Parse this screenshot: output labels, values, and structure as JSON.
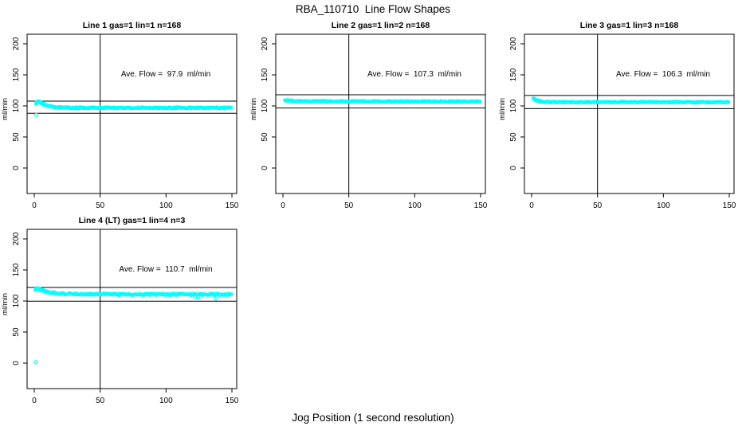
{
  "main_title": "RBA_110710  Line Flow Shapes",
  "x_axis_title": "Jog Position (1 second resolution)",
  "y_axis_label": "ml/min",
  "colors": {
    "points": "#00FFFF",
    "lines": "#000000",
    "background": "#FFFFFF",
    "text": "#000000"
  },
  "axes": {
    "x_ticks": [
      0,
      50,
      100,
      150
    ],
    "y_ticks": [
      0,
      50,
      100,
      150,
      200
    ],
    "vertical_reference_x": 50
  },
  "chart_data": [
    {
      "type": "scatter",
      "title": "Line 1 gas=1 lin=1 n=168",
      "line": 1,
      "gas": 1,
      "lin": 1,
      "n": 168,
      "ave_flow_ml_min": 97.9,
      "annotation": "Ave. Flow =  97.9  ml/min",
      "upper_reference_line": 107.7,
      "lower_reference_line": 88.1,
      "band_halfwidth": 1.5,
      "centerline": [
        [
          1.5,
          104.5
        ],
        [
          2.2,
          106.8
        ],
        [
          3,
          107.3
        ],
        [
          4,
          106.6
        ],
        [
          5,
          105.2
        ],
        [
          6.5,
          103.4
        ],
        [
          8,
          101.9
        ],
        [
          10,
          100.4
        ],
        [
          12.5,
          99.1
        ],
        [
          15,
          98.3
        ],
        [
          18,
          97.8
        ],
        [
          22,
          97.3
        ],
        [
          30,
          97.0
        ],
        [
          45,
          96.9
        ],
        [
          70,
          96.9
        ],
        [
          100,
          96.9
        ],
        [
          125,
          97.0
        ],
        [
          150,
          96.7
        ]
      ],
      "outliers": [
        [
          1.6,
          85.5
        ]
      ]
    },
    {
      "type": "scatter",
      "title": "Line 2 gas=1 lin=2 n=168",
      "line": 2,
      "gas": 1,
      "lin": 2,
      "n": 168,
      "ave_flow_ml_min": 107.3,
      "annotation": "Ave. Flow =  107.3  ml/min",
      "upper_reference_line": 118.0,
      "lower_reference_line": 96.6,
      "band_halfwidth": 1.3,
      "centerline": [
        [
          1.5,
          109.6
        ],
        [
          3,
          108.9
        ],
        [
          5,
          108.4
        ],
        [
          8,
          108.0
        ],
        [
          12,
          107.7
        ],
        [
          20,
          107.5
        ],
        [
          35,
          107.4
        ],
        [
          60,
          107.3
        ],
        [
          90,
          107.2
        ],
        [
          120,
          107.2
        ],
        [
          150,
          107.0
        ]
      ],
      "outliers": []
    },
    {
      "type": "scatter",
      "title": "Line 3 gas=1 lin=3 n=168",
      "line": 3,
      "gas": 1,
      "lin": 3,
      "n": 168,
      "ave_flow_ml_min": 106.3,
      "annotation": "Ave. Flow =  106.3  ml/min",
      "upper_reference_line": 116.9,
      "lower_reference_line": 95.7,
      "band_halfwidth": 1.3,
      "centerline": [
        [
          1.5,
          111.6
        ],
        [
          2.5,
          110.6
        ],
        [
          4,
          108.9
        ],
        [
          6,
          107.6
        ],
        [
          8,
          106.9
        ],
        [
          11,
          106.5
        ],
        [
          15,
          106.3
        ],
        [
          25,
          106.2
        ],
        [
          50,
          106.2
        ],
        [
          80,
          106.2
        ],
        [
          110,
          106.2
        ],
        [
          130,
          106.1
        ],
        [
          150,
          105.9
        ]
      ],
      "outliers": []
    },
    {
      "type": "scatter",
      "title": "Line 4 (LT) gas=1 lin=4 n=3",
      "line": 4,
      "gas": 1,
      "lin": 4,
      "n": 3,
      "ave_flow_ml_min": 110.7,
      "annotation": "Ave. Flow =  110.7  ml/min",
      "upper_reference_line": 121.8,
      "lower_reference_line": 99.6,
      "band_halfwidth": 1.8,
      "centerline": [
        [
          1,
          119.2
        ],
        [
          2,
          120.1
        ],
        [
          3,
          119.4
        ],
        [
          4.5,
          118.2
        ],
        [
          6,
          117.1
        ],
        [
          8,
          115.8
        ],
        [
          10,
          114.8
        ],
        [
          13,
          113.6
        ],
        [
          16,
          112.7
        ],
        [
          20,
          112.1
        ],
        [
          25,
          111.6
        ],
        [
          32,
          111.2
        ],
        [
          42,
          111.0
        ],
        [
          55,
          110.9
        ],
        [
          75,
          110.8
        ],
        [
          100,
          110.8
        ],
        [
          120,
          110.7
        ],
        [
          135,
          110.6
        ],
        [
          150,
          110.4
        ]
      ],
      "outliers": [
        [
          1.2,
          1.5
        ],
        [
          122,
          105.7
        ],
        [
          124.5,
          106.4
        ],
        [
          138,
          103.9
        ]
      ]
    }
  ]
}
